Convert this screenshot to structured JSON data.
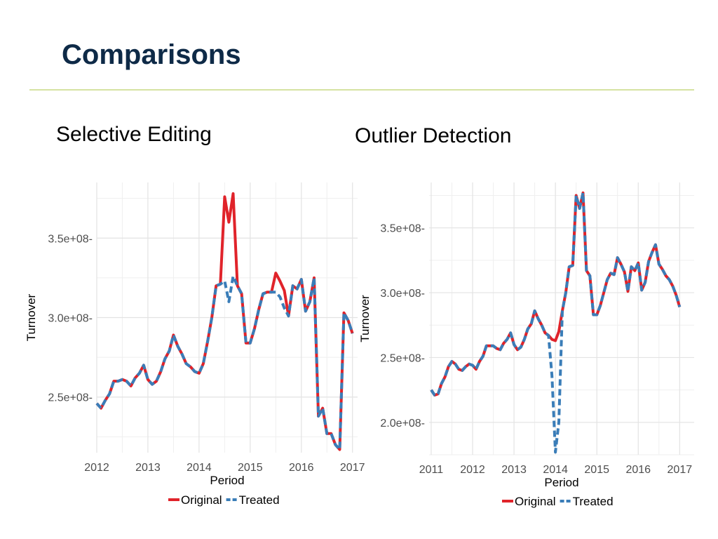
{
  "slide": {
    "title": "Comparisons",
    "left_heading": "Selective Editing",
    "right_heading": "Outlier Detection"
  },
  "colors": {
    "original": "#e0232a",
    "treated": "#3a7db8",
    "grid": "#e3e3e3",
    "title": "#0e2a47",
    "rule": "#d6e3a2"
  },
  "chart_data": [
    {
      "type": "line",
      "title": "Selective Editing",
      "xlabel": "Period",
      "ylabel": "Turnover",
      "xlim": [
        2012,
        2017.1
      ],
      "ylim": [
        215000000.0,
        385000000.0
      ],
      "x_ticks": [
        2012,
        2013,
        2014,
        2015,
        2016,
        2017
      ],
      "x_tick_labels": [
        "2012",
        "2013",
        "2014",
        "2015",
        "2016",
        "2017"
      ],
      "y_ticks": [
        250000000.0,
        300000000.0,
        350000000.0
      ],
      "y_tick_labels": [
        "2.5e+08",
        "3.0e+08",
        "3.5e+08"
      ],
      "grid": true,
      "legend": {
        "position": "bottom",
        "entries": [
          "Original",
          "Treated"
        ]
      },
      "x": [
        2012.0,
        2012.083,
        2012.167,
        2012.25,
        2012.333,
        2012.417,
        2012.5,
        2012.583,
        2012.667,
        2012.75,
        2012.833,
        2012.917,
        2013.0,
        2013.083,
        2013.167,
        2013.25,
        2013.333,
        2013.417,
        2013.5,
        2013.583,
        2013.667,
        2013.75,
        2013.833,
        2013.917,
        2014.0,
        2014.083,
        2014.167,
        2014.25,
        2014.333,
        2014.417,
        2014.5,
        2014.583,
        2014.667,
        2014.75,
        2014.833,
        2014.917,
        2015.0,
        2015.083,
        2015.167,
        2015.25,
        2015.333,
        2015.417,
        2015.5,
        2015.583,
        2015.667,
        2015.75,
        2015.833,
        2015.917,
        2016.0,
        2016.083,
        2016.167,
        2016.25,
        2016.333,
        2016.417,
        2016.5,
        2016.583,
        2016.667,
        2016.75,
        2016.833,
        2016.917,
        2017.0
      ],
      "series": [
        {
          "name": "Original",
          "style": "solid",
          "values": [
            246000000.0,
            243000000.0,
            248000000.0,
            252000000.0,
            260000000.0,
            260000000.0,
            261000000.0,
            260000000.0,
            257000000.0,
            262000000.0,
            265000000.0,
            270000000.0,
            261000000.0,
            258000000.0,
            260000000.0,
            266000000.0,
            274000000.0,
            279000000.0,
            289000000.0,
            282000000.0,
            277000000.0,
            271000000.0,
            269000000.0,
            266000000.0,
            265000000.0,
            271000000.0,
            285000000.0,
            300000000.0,
            320000000.0,
            321000000.0,
            376000000.0,
            360000000.0,
            378000000.0,
            320000000.0,
            315000000.0,
            284000000.0,
            284000000.0,
            293000000.0,
            305000000.0,
            315000000.0,
            316000000.0,
            316000000.0,
            328000000.0,
            323000000.0,
            317000000.0,
            301000000.0,
            320000000.0,
            318000000.0,
            324000000.0,
            304000000.0,
            310000000.0,
            325000000.0,
            238000000.0,
            243000000.0,
            227000000.0,
            227000000.0,
            220000000.0,
            217000000.0,
            303000000.0,
            298000000.0,
            290000000.0
          ]
        },
        {
          "name": "Treated",
          "style": "dashed",
          "values": [
            246000000.0,
            243000000.0,
            248000000.0,
            252000000.0,
            260000000.0,
            260000000.0,
            261000000.0,
            260000000.0,
            257000000.0,
            262000000.0,
            265000000.0,
            270000000.0,
            261000000.0,
            258000000.0,
            260000000.0,
            266000000.0,
            274000000.0,
            279000000.0,
            289000000.0,
            282000000.0,
            277000000.0,
            271000000.0,
            269000000.0,
            266000000.0,
            265000000.0,
            271000000.0,
            285000000.0,
            300000000.0,
            320000000.0,
            321000000.0,
            323000000.0,
            310000000.0,
            326000000.0,
            320000000.0,
            315000000.0,
            284000000.0,
            284000000.0,
            293000000.0,
            305000000.0,
            315000000.0,
            316000000.0,
            316000000.0,
            316000000.0,
            313000000.0,
            306000000.0,
            301000000.0,
            320000000.0,
            318000000.0,
            324000000.0,
            304000000.0,
            310000000.0,
            325000000.0,
            238000000.0,
            243000000.0,
            227000000.0,
            227000000.0,
            220000000.0,
            217000000.0,
            303000000.0,
            298000000.0,
            290000000.0
          ]
        }
      ]
    },
    {
      "type": "line",
      "title": "Outlier Detection",
      "xlabel": "Period",
      "ylabel": "Turnover",
      "xlim": [
        2010.95,
        2017.35
      ],
      "ylim": [
        175000000.0,
        385000000.0
      ],
      "x_ticks": [
        2011,
        2012,
        2013,
        2014,
        2015,
        2016,
        2017
      ],
      "x_tick_labels": [
        "2011",
        "2012",
        "2013",
        "2014",
        "2015",
        "2016",
        "2017"
      ],
      "y_ticks": [
        200000000.0,
        250000000.0,
        300000000.0,
        350000000.0
      ],
      "y_tick_labels": [
        "2.0e+08",
        "2.5e+08",
        "3.0e+08",
        "3.5e+08"
      ],
      "grid": true,
      "legend": {
        "position": "bottom",
        "entries": [
          "Original",
          "Treated"
        ]
      },
      "x": [
        2011.0,
        2011.083,
        2011.167,
        2011.25,
        2011.333,
        2011.417,
        2011.5,
        2011.583,
        2011.667,
        2011.75,
        2011.833,
        2011.917,
        2012.0,
        2012.083,
        2012.167,
        2012.25,
        2012.333,
        2012.417,
        2012.5,
        2012.583,
        2012.667,
        2012.75,
        2012.833,
        2012.917,
        2013.0,
        2013.083,
        2013.167,
        2013.25,
        2013.333,
        2013.417,
        2013.5,
        2013.583,
        2013.667,
        2013.75,
        2013.833,
        2013.917,
        2014.0,
        2014.083,
        2014.167,
        2014.25,
        2014.333,
        2014.417,
        2014.5,
        2014.583,
        2014.667,
        2014.75,
        2014.833,
        2014.917,
        2015.0,
        2015.083,
        2015.167,
        2015.25,
        2015.333,
        2015.417,
        2015.5,
        2015.583,
        2015.667,
        2015.75,
        2015.833,
        2015.917,
        2016.0,
        2016.083,
        2016.167,
        2016.25,
        2016.333,
        2016.417,
        2016.5,
        2016.583,
        2016.667,
        2016.75,
        2016.833,
        2016.917,
        2017.0
      ],
      "series": [
        {
          "name": "Original",
          "style": "solid",
          "values": [
            225000000.0,
            221000000.0,
            222000000.0,
            230000000.0,
            235000000.0,
            243000000.0,
            247000000.0,
            245000000.0,
            241000000.0,
            240000000.0,
            243000000.0,
            245000000.0,
            244000000.0,
            241000000.0,
            247000000.0,
            251000000.0,
            259000000.0,
            259000000.0,
            259000000.0,
            257000000.0,
            256000000.0,
            261000000.0,
            264000000.0,
            269000000.0,
            260000000.0,
            256000000.0,
            258000000.0,
            264000000.0,
            272000000.0,
            276000000.0,
            286000000.0,
            280000000.0,
            275000000.0,
            269000000.0,
            267000000.0,
            264000000.0,
            263000000.0,
            270000000.0,
            286000000.0,
            300000000.0,
            320000000.0,
            321000000.0,
            375000000.0,
            365000000.0,
            377000000.0,
            317000000.0,
            313000000.0,
            283000000.0,
            283000000.0,
            290000000.0,
            300000000.0,
            310000000.0,
            315000000.0,
            314000000.0,
            327000000.0,
            322000000.0,
            316000000.0,
            301000000.0,
            320000000.0,
            317000000.0,
            323000000.0,
            302000000.0,
            308000000.0,
            324000000.0,
            331000000.0,
            337000000.0,
            322000000.0,
            318000000.0,
            313000000.0,
            310000000.0,
            305000000.0,
            298000000.0,
            289000000.0
          ]
        },
        {
          "name": "Treated",
          "style": "dashed",
          "values": [
            225000000.0,
            221000000.0,
            222000000.0,
            230000000.0,
            235000000.0,
            243000000.0,
            247000000.0,
            245000000.0,
            241000000.0,
            240000000.0,
            243000000.0,
            245000000.0,
            244000000.0,
            241000000.0,
            247000000.0,
            251000000.0,
            259000000.0,
            259000000.0,
            259000000.0,
            257000000.0,
            256000000.0,
            261000000.0,
            264000000.0,
            269000000.0,
            260000000.0,
            256000000.0,
            258000000.0,
            264000000.0,
            272000000.0,
            276000000.0,
            286000000.0,
            280000000.0,
            275000000.0,
            269000000.0,
            267000000.0,
            236000000.0,
            177000000.0,
            200000000.0,
            286000000.0,
            300000000.0,
            320000000.0,
            321000000.0,
            375000000.0,
            365000000.0,
            377000000.0,
            317000000.0,
            313000000.0,
            283000000.0,
            283000000.0,
            290000000.0,
            300000000.0,
            310000000.0,
            315000000.0,
            314000000.0,
            327000000.0,
            322000000.0,
            316000000.0,
            301000000.0,
            320000000.0,
            317000000.0,
            323000000.0,
            302000000.0,
            308000000.0,
            324000000.0,
            331000000.0,
            337000000.0,
            322000000.0,
            318000000.0,
            313000000.0,
            310000000.0,
            305000000.0,
            298000000.0,
            289000000.0
          ]
        }
      ]
    }
  ]
}
